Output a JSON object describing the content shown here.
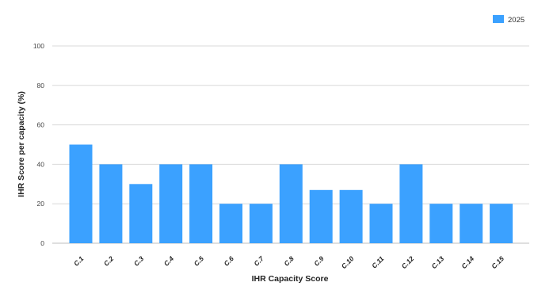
{
  "chart_data": {
    "type": "bar",
    "categories": [
      "C.1",
      "C.2",
      "C.3",
      "C.4",
      "C.5",
      "C.6",
      "C.7",
      "C.8",
      "C.9",
      "C.10",
      "C.11",
      "C.12",
      "C.13",
      "C.14",
      "C.15"
    ],
    "series": [
      {
        "name": "2025",
        "values": [
          50,
          40,
          30,
          40,
          40,
          20,
          20,
          40,
          27,
          27,
          20,
          40,
          20,
          20,
          20
        ],
        "color": "#3ba1ff"
      }
    ],
    "xlabel": "IHR Capacity Score",
    "ylabel": "IHR Score per capacity (%)",
    "ylim": [
      0,
      100
    ],
    "yticks": [
      0,
      20,
      40,
      60,
      80,
      100
    ],
    "grid": true,
    "legend_position": "top-right"
  }
}
